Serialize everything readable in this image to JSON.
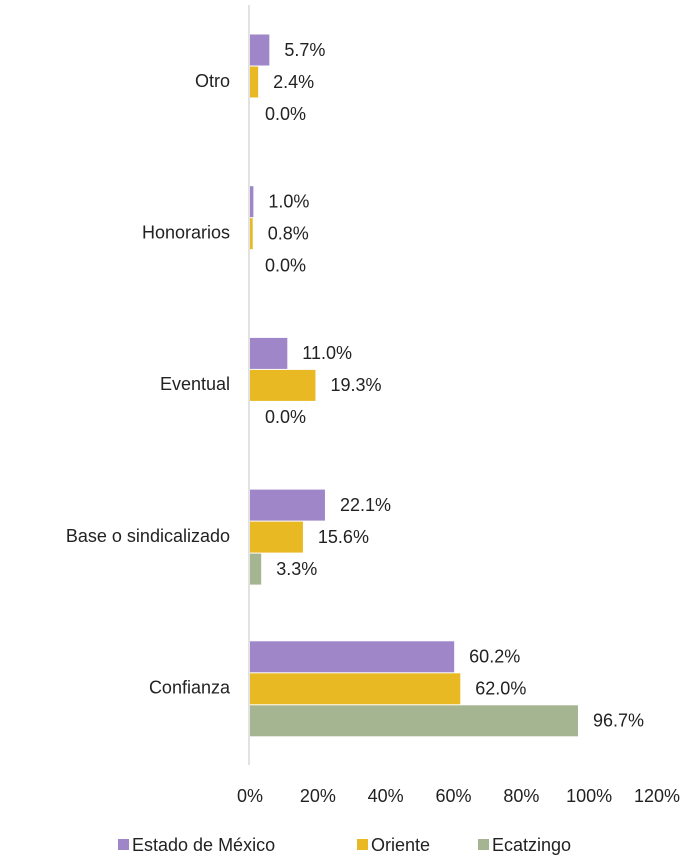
{
  "chart_data": {
    "type": "barh",
    "categories": [
      "Otro",
      "Honorarios",
      "Eventual",
      "Base o sindicalizado",
      "Confianza"
    ],
    "series": [
      {
        "name": "Estado de México",
        "color": "#9e86c8",
        "values": [
          5.7,
          1.0,
          11.0,
          22.1,
          60.2
        ],
        "value_labels": [
          "5.7%",
          "1.0%",
          "11.0%",
          "22.1%",
          "60.2%"
        ]
      },
      {
        "name": "Oriente",
        "color": "#e8b923",
        "values": [
          2.4,
          0.8,
          19.3,
          15.6,
          62.0
        ],
        "value_labels": [
          "2.4%",
          "0.8%",
          "19.3%",
          "15.6%",
          "62.0%"
        ]
      },
      {
        "name": "Ecatzingo",
        "color": "#a5b592",
        "values": [
          0.0,
          0.0,
          0.0,
          3.3,
          96.7
        ],
        "value_labels": [
          "0.0%",
          "0.0%",
          "0.0%",
          "3.3%",
          "96.7%"
        ]
      }
    ],
    "xlim": [
      0,
      120
    ],
    "xticks": [
      {
        "value": 0,
        "label": "0%"
      },
      {
        "value": 20,
        "label": "20%"
      },
      {
        "value": 40,
        "label": "40%"
      },
      {
        "value": 60,
        "label": "60%"
      },
      {
        "value": 80,
        "label": "80%"
      },
      {
        "value": 100,
        "label": "100%"
      },
      {
        "value": 120,
        "label": "120%"
      }
    ],
    "grid": false,
    "legend": "bottom"
  }
}
